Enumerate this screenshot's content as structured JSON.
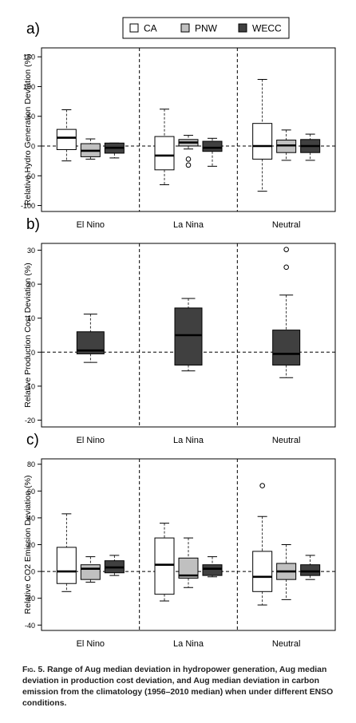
{
  "legend": {
    "items": [
      {
        "label": "CA",
        "color": "#ffffff"
      },
      {
        "label": "PNW",
        "color": "#c0c0c0"
      },
      {
        "label": "WECC",
        "color": "#404040"
      }
    ]
  },
  "chart_data": [
    {
      "panel": "a)",
      "type": "box",
      "ylabel": "Relative Hydro Generation Deviation (%)",
      "ylim": [
        -110,
        165
      ],
      "yticks": [
        -100,
        -50,
        0,
        50,
        100,
        150
      ],
      "categories": [
        "El Nino",
        "La Nina",
        "Neutral"
      ],
      "series_names": [
        "CA",
        "PNW",
        "WECC"
      ],
      "boxes": [
        [
          {
            "whisker_low": -25,
            "q1": -6,
            "median": 14,
            "q3": 28,
            "whisker_high": 61,
            "outliers": []
          },
          {
            "whisker_low": -22,
            "q1": -18,
            "median": -8,
            "q3": 4,
            "whisker_high": 12,
            "outliers": []
          },
          {
            "whisker_low": -20,
            "q1": -12,
            "median": -3,
            "q3": 5,
            "whisker_high": 5,
            "outliers": []
          }
        ],
        [
          {
            "whisker_low": -65,
            "q1": -40,
            "median": -16,
            "q3": 16,
            "whisker_high": 62,
            "outliers": []
          },
          {
            "whisker_low": -5,
            "q1": 0,
            "median": 6,
            "q3": 11,
            "whisker_high": 18,
            "outliers": [
              -22,
              -32
            ]
          },
          {
            "whisker_low": -34,
            "q1": -9,
            "median": -3,
            "q3": 8,
            "whisker_high": 13,
            "outliers": []
          }
        ],
        [
          {
            "whisker_low": -76,
            "q1": -22,
            "median": 0,
            "q3": 38,
            "whisker_high": 112,
            "outliers": []
          },
          {
            "whisker_low": -24,
            "q1": -11,
            "median": 1,
            "q3": 10,
            "whisker_high": 27,
            "outliers": []
          },
          {
            "whisker_low": -24,
            "q1": -11,
            "median": 0,
            "q3": 11,
            "whisker_high": 20,
            "outliers": []
          }
        ]
      ]
    },
    {
      "panel": "b)",
      "type": "box",
      "ylabel": "Relative Production Cost Deviation (%)",
      "ylim": [
        -22,
        32
      ],
      "yticks": [
        -20,
        -10,
        0,
        10,
        20,
        30
      ],
      "categories": [
        "El Nino",
        "La Nina",
        "Neutral"
      ],
      "series_names": [
        "WECC"
      ],
      "boxes": [
        [
          {
            "whisker_low": -3,
            "q1": -0.5,
            "median": 0.5,
            "q3": 6,
            "whisker_high": 11.2,
            "outliers": []
          }
        ],
        [
          {
            "whisker_low": -5.5,
            "q1": -3.8,
            "median": 5,
            "q3": 13,
            "whisker_high": 15.8,
            "outliers": []
          }
        ],
        [
          {
            "whisker_low": -7.5,
            "q1": -3.8,
            "median": -0.5,
            "q3": 6.5,
            "whisker_high": 16.8,
            "outliers": [
              25,
              30.2
            ]
          }
        ]
      ]
    },
    {
      "panel": "c)",
      "type": "box",
      "ylabel": "Relative CO2 Emission Deviation (%)",
      "ylim": [
        -44,
        84
      ],
      "yticks": [
        -40,
        -20,
        0,
        20,
        40,
        60,
        80
      ],
      "categories": [
        "El Nino",
        "La Nina",
        "Neutral"
      ],
      "series_names": [
        "CA",
        "PNW",
        "WECC"
      ],
      "boxes": [
        [
          {
            "whisker_low": -15,
            "q1": -9,
            "median": 0,
            "q3": 18,
            "whisker_high": 43,
            "outliers": []
          },
          {
            "whisker_low": -8,
            "q1": -6,
            "median": 2,
            "q3": 5,
            "whisker_high": 11,
            "outliers": []
          },
          {
            "whisker_low": -3,
            "q1": -1,
            "median": 3,
            "q3": 8,
            "whisker_high": 12,
            "outliers": []
          }
        ],
        [
          {
            "whisker_low": -22,
            "q1": -17,
            "median": 5,
            "q3": 25,
            "whisker_high": 36,
            "outliers": []
          },
          {
            "whisker_low": -12,
            "q1": -5,
            "median": -3,
            "q3": 10,
            "whisker_high": 25,
            "outliers": []
          },
          {
            "whisker_low": -4,
            "q1": -3,
            "median": 2,
            "q3": 5,
            "whisker_high": 11,
            "outliers": []
          }
        ],
        [
          {
            "whisker_low": -25,
            "q1": -15,
            "median": -4,
            "q3": 15,
            "whisker_high": 41,
            "outliers": [
              64
            ]
          },
          {
            "whisker_low": -21,
            "q1": -6,
            "median": 0,
            "q3": 6,
            "whisker_high": 20,
            "outliers": []
          },
          {
            "whisker_low": -6,
            "q1": -3,
            "median": 0,
            "q3": 5,
            "whisker_high": 12,
            "outliers": []
          }
        ]
      ]
    }
  ],
  "caption": {
    "fig_label": "Fig. 5.",
    "text": "Range of Aug median deviation in hydropower generation, Aug median deviation in production cost deviation, and Aug median deviation in carbon emission from the climatology (1956–2010 median) when under different ENSO conditions."
  }
}
